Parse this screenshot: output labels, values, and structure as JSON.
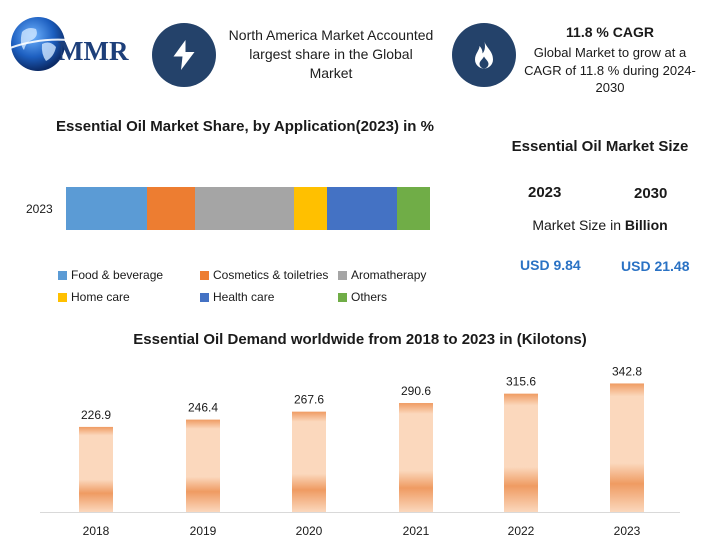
{
  "brand": {
    "logo_text": "MMR"
  },
  "header": {
    "highlight_text": "North America Market Accounted largest share in the Global Market",
    "cagr_title": "11.8 % CAGR",
    "cagr_text": "Global Market to grow at a CAGR of 11.8 % during 2024-2030"
  },
  "icons": {
    "logo": "globe-icon",
    "highlight": "lightning-bolt-icon",
    "cagr": "flame-icon"
  },
  "colors": {
    "icon_bg": "#24426a",
    "value_text": "#2a72c4",
    "bar_light": "#fbd8bd",
    "bar_dark": "#ef9b62"
  },
  "market_size": {
    "title": "Essential Oil Market Size",
    "year_a": "2023",
    "year_b": "2030",
    "subtitle_prefix": "Market Size in ",
    "subtitle_bold": "Billion",
    "value_a": "USD 9.84",
    "value_b": "USD 21.48"
  },
  "chart_data": [
    {
      "type": "bar",
      "orientation": "horizontal-stacked",
      "title": "Essential Oil Market Share, by Application(2023) in %",
      "categories": [
        "2023"
      ],
      "series": [
        {
          "name": "Food & beverage",
          "values": [
            22
          ],
          "color": "#5b9bd5"
        },
        {
          "name": "Cosmetics & toiletries",
          "values": [
            13
          ],
          "color": "#ed7d31"
        },
        {
          "name": "Aromatherapy",
          "values": [
            27
          ],
          "color": "#a5a5a5"
        },
        {
          "name": "Home care",
          "values": [
            9
          ],
          "color": "#ffc000"
        },
        {
          "name": "Health care",
          "values": [
            19
          ],
          "color": "#4472c4"
        },
        {
          "name": "Others",
          "values": [
            9
          ],
          "color": "#70ad47"
        }
      ],
      "legend": "bottom"
    },
    {
      "type": "bar",
      "title": "Essential Oil Demand worldwide  from 2018 to 2023 in (Kilotons)",
      "categories": [
        "2018",
        "2019",
        "2020",
        "2021",
        "2022",
        "2023"
      ],
      "values": [
        226.9,
        246.4,
        267.6,
        290.6,
        315.6,
        342.8
      ],
      "value_labels": [
        "226.9",
        "246.4",
        "267.6",
        "290.6",
        "315.6",
        "342.8"
      ],
      "xlabel": "",
      "ylabel": "",
      "ylim": [
        0,
        400
      ],
      "grid": false
    }
  ]
}
